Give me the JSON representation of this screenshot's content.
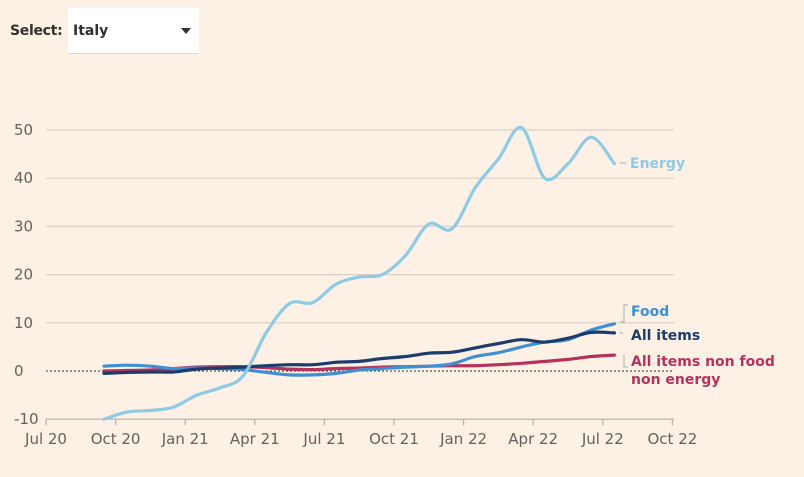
{
  "selector": {
    "label": "Select:",
    "value": "Italy"
  },
  "chart_data": {
    "type": "line",
    "title": "",
    "xlabel": "",
    "ylabel": "",
    "ylim": [
      -10,
      50
    ],
    "yticks": [
      50,
      40,
      30,
      20,
      10,
      0,
      -10
    ],
    "ytick_labels": [
      "50",
      "40",
      "30",
      "20",
      "10",
      "0",
      "-10"
    ],
    "xticks": [
      "Jul 20",
      "Oct 20",
      "Jan 21",
      "Apr 21",
      "Jul 21",
      "Oct 21",
      "Jan 22",
      "Apr 22",
      "Jul 22",
      "Oct 22"
    ],
    "x_start": "Jul 2020",
    "grid": true,
    "zero_line": "dotted",
    "legend_placement": "right (direct labels at line ends)",
    "x": [
      "Sep 20",
      "Oct 20",
      "Nov 20",
      "Dec 20",
      "Jan 21",
      "Feb 21",
      "Mar 21",
      "Apr 21",
      "May 21",
      "Jun 21",
      "Jul 21",
      "Aug 21",
      "Sep 21",
      "Oct 21",
      "Nov 21",
      "Dec 21",
      "Jan 22",
      "Feb 22",
      "Mar 22",
      "Apr 22",
      "May 22",
      "Jun 22",
      "Jul 22"
    ],
    "series": [
      {
        "name": "Energy",
        "color": "#8ecae6",
        "values": [
          -10,
          -8.5,
          -8.2,
          -7.5,
          -5,
          -3.5,
          -1,
          8,
          14,
          14.2,
          18,
          19.5,
          20,
          24,
          30.5,
          29.5,
          38,
          44,
          50.5,
          40,
          43,
          48.5,
          43
        ]
      },
      {
        "name": "Food",
        "color": "#3f8fd2",
        "values": [
          1,
          1.2,
          1,
          0.5,
          0.6,
          0.5,
          0.3,
          -0.3,
          -0.8,
          -0.8,
          -0.5,
          0.2,
          0.5,
          0.8,
          1,
          1.5,
          3,
          3.8,
          5,
          6,
          6.5,
          8.5,
          9.8
        ]
      },
      {
        "name": "All items",
        "color": "#1d3c6e",
        "values": [
          -0.5,
          -0.3,
          -0.2,
          -0.2,
          0.4,
          0.6,
          0.8,
          1.1,
          1.3,
          1.3,
          1.8,
          2,
          2.6,
          3,
          3.7,
          3.9,
          4.8,
          5.7,
          6.5,
          6,
          6.8,
          8,
          7.9
        ]
      },
      {
        "name": "All items non food non energy",
        "color": "#b5325c",
        "values": [
          0,
          0.1,
          0.2,
          0.5,
          0.8,
          0.9,
          0.9,
          0.7,
          0.4,
          0.3,
          0.5,
          0.6,
          0.8,
          0.9,
          1,
          1.1,
          1.1,
          1.3,
          1.6,
          2,
          2.4,
          3,
          3.3
        ]
      }
    ],
    "labels": {
      "energy": "Energy",
      "food": "Food",
      "all_items": "All items",
      "core_line1": "All items non food",
      "core_line2": "non energy"
    }
  }
}
